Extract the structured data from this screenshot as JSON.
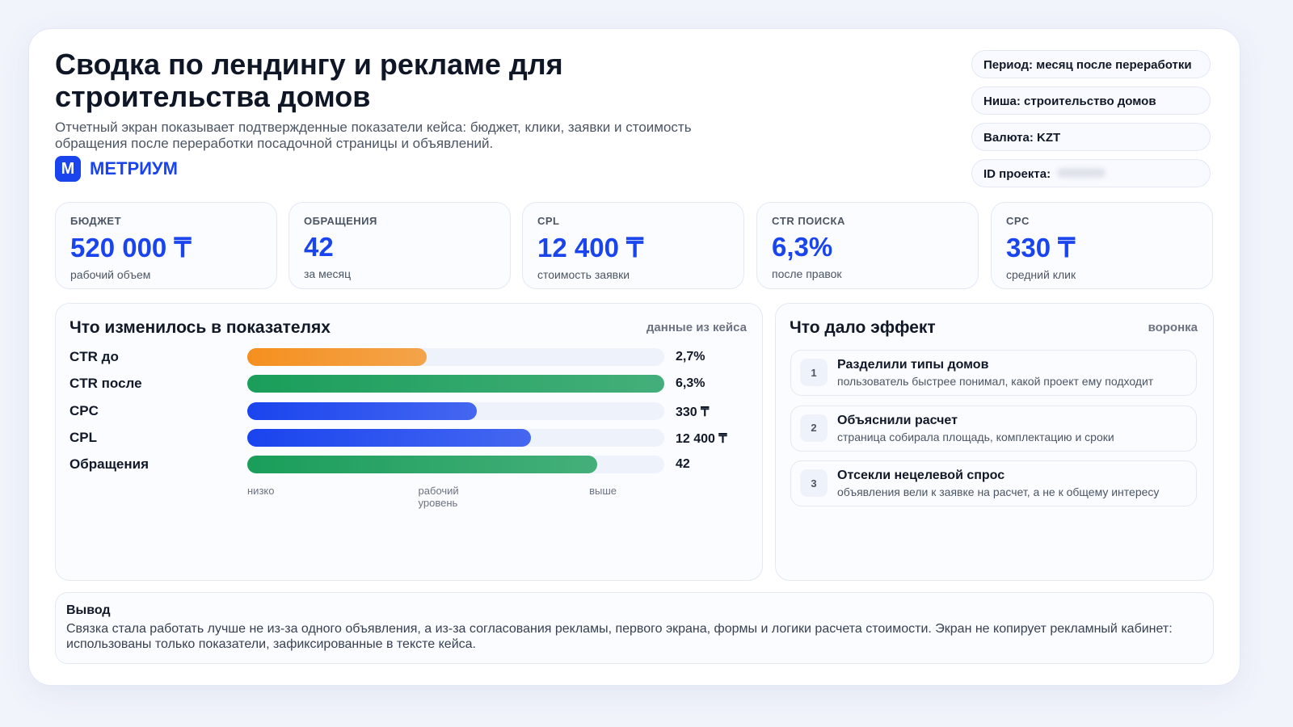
{
  "header": {
    "title": "Сводка по лендингу и рекламе для строительства домов",
    "subtitle": "Отчетный экран показывает подтвержденные показатели кейса: бюджет, клики, заявки и стоимость обращения после переработки посадочной страницы и объявлений.",
    "logo": "М",
    "brand": "МЕТРИУМ"
  },
  "meta": [
    "Период: месяц после переработки",
    "Ниша: строительство домов",
    "Валюта: KZT",
    "ID проекта:"
  ],
  "kpis": [
    {
      "label": "БЮДЖЕТ",
      "value": "520 000 ₸",
      "note": "рабочий объем"
    },
    {
      "label": "ОБРАЩЕНИЯ",
      "value": "42",
      "note": "за месяц"
    },
    {
      "label": "CPL",
      "value": "12 400 ₸",
      "note": "стоимость заявки"
    },
    {
      "label": "CTR ПОИСКА",
      "value": "6,3%",
      "note": "после правок"
    },
    {
      "label": "CPC",
      "value": "330 ₸",
      "note": "средний клик"
    }
  ],
  "chart_data": {
    "type": "bar",
    "title": "Что изменилось в показателях",
    "note": "данные из кейса",
    "categories": [
      "CTR до",
      "CTR после",
      "CPC",
      "CPL",
      "Обращения"
    ],
    "values": [
      43,
      100,
      55,
      68,
      84
    ],
    "value_labels": [
      "2,7%",
      "6,3%",
      "330 ₸",
      "12 400 ₸",
      "42"
    ],
    "colors": [
      "#f5901f",
      "#1a9e5a",
      "#1a44ee",
      "#1a44ee",
      "#1a9e5a"
    ],
    "xlim": [
      0,
      100
    ],
    "xticks": [
      {
        "value": 0,
        "label": "низко"
      },
      {
        "value": 41,
        "label": "рабочий уровень"
      },
      {
        "value": 82,
        "label": "выше"
      }
    ]
  },
  "effects": {
    "title": "Что дало эффект",
    "note": "воронка",
    "items": [
      {
        "number": 1,
        "title": "Разделили типы домов",
        "text": "пользователь быстрее понимал, какой проект ему подходит"
      },
      {
        "number": 2,
        "title": "Объяснили расчет",
        "text": "страница собирала площадь, комплектацию и сроки"
      },
      {
        "number": 3,
        "title": "Отсекли нецелевой спрос",
        "text": "объявления вели к заявке на расчет, а не к общему интересу"
      }
    ]
  },
  "conclusion": {
    "title": "Вывод",
    "text": "Связка стала работать лучше не из-за одного объявления, а из-за согласования рекламы, первого экрана, формы и логики расчета стоимости. Экран не копирует рекламный кабинет: использованы только показатели, зафиксированные в тексте кейса."
  }
}
